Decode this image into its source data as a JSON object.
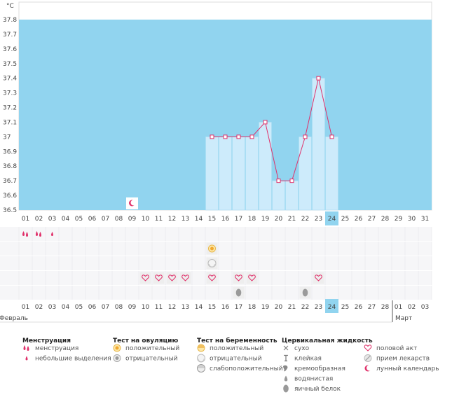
{
  "chart_data": {
    "type": "line",
    "title": "",
    "ylabel": "°C",
    "ylim": [
      36.5,
      37.8
    ],
    "y_ticks": [
      "37.8",
      "37.7",
      "37.6",
      "37.5",
      "37.4",
      "37.3",
      "37.2",
      "37.1",
      "37",
      "36.9",
      "36.8",
      "36.7",
      "36.6",
      "36.5"
    ],
    "days": [
      "01",
      "02",
      "03",
      "04",
      "05",
      "06",
      "07",
      "08",
      "09",
      "10",
      "11",
      "12",
      "13",
      "14",
      "15",
      "16",
      "17",
      "18",
      "19",
      "20",
      "21",
      "22",
      "23",
      "24",
      "25",
      "26",
      "27",
      "28",
      "29",
      "30",
      "31"
    ],
    "current_day": "24",
    "series": [
      {
        "name": "temperature",
        "points": [
          {
            "day": "15",
            "value": 37.0
          },
          {
            "day": "16",
            "value": 37.0
          },
          {
            "day": "17",
            "value": 37.0
          },
          {
            "day": "18",
            "value": 37.0
          },
          {
            "day": "19",
            "value": 37.1
          },
          {
            "day": "20",
            "value": 36.7
          },
          {
            "day": "21",
            "value": 36.7
          },
          {
            "day": "22",
            "value": 37.0
          },
          {
            "day": "23",
            "value": 37.4
          },
          {
            "day": "24",
            "value": 37.0
          }
        ]
      }
    ],
    "markers": [
      {
        "row": "menstruation",
        "day": "01",
        "icon": "menstruation-icon"
      },
      {
        "row": "menstruation",
        "day": "02",
        "icon": "menstruation-icon"
      },
      {
        "row": "menstruation",
        "day": "03",
        "icon": "light-spotting-icon"
      },
      {
        "row": "ovulation",
        "day": "15",
        "icon": "ovulation-positive-icon"
      },
      {
        "row": "pregnancy",
        "day": "15",
        "icon": "pregnancy-negative-icon"
      },
      {
        "row": "intercourse",
        "day": "10",
        "icon": "heart-icon"
      },
      {
        "row": "intercourse",
        "day": "11",
        "icon": "heart-icon"
      },
      {
        "row": "intercourse",
        "day": "12",
        "icon": "heart-icon"
      },
      {
        "row": "intercourse",
        "day": "13",
        "icon": "heart-icon"
      },
      {
        "row": "intercourse",
        "day": "15",
        "icon": "heart-icon"
      },
      {
        "row": "intercourse",
        "day": "17",
        "icon": "heart-icon"
      },
      {
        "row": "intercourse",
        "day": "18",
        "icon": "heart-icon"
      },
      {
        "row": "intercourse",
        "day": "23",
        "icon": "heart-icon"
      },
      {
        "row": "cervical",
        "day": "17",
        "icon": "egg-white-icon"
      },
      {
        "row": "cervical",
        "day": "22",
        "icon": "egg-white-icon"
      },
      {
        "row": "lunar",
        "day": "09",
        "icon": "lunar-icon"
      }
    ],
    "date_labels": [
      {
        "text": "01",
        "red": true
      },
      {
        "text": "02",
        "red": true
      },
      {
        "text": "03",
        "red": false
      },
      {
        "text": "04",
        "red": false
      },
      {
        "text": "05",
        "red": false
      },
      {
        "text": "06",
        "red": false
      },
      {
        "text": "07",
        "red": false
      },
      {
        "text": "08",
        "red": true
      },
      {
        "text": "09",
        "red": true
      },
      {
        "text": "10",
        "red": false
      },
      {
        "text": "11",
        "red": false
      },
      {
        "text": "12",
        "red": false
      },
      {
        "text": "13",
        "red": false
      },
      {
        "text": "14",
        "red": false
      },
      {
        "text": "15",
        "red": true
      },
      {
        "text": "16",
        "red": true
      },
      {
        "text": "17",
        "red": false
      },
      {
        "text": "18",
        "red": false
      },
      {
        "text": "19",
        "red": false
      },
      {
        "text": "20",
        "red": false
      },
      {
        "text": "21",
        "red": false
      },
      {
        "text": "22",
        "red": true
      },
      {
        "text": "23",
        "red": true
      },
      {
        "text": "24",
        "red": false
      },
      {
        "text": "25",
        "red": false
      },
      {
        "text": "26",
        "red": false
      },
      {
        "text": "27",
        "red": false
      },
      {
        "text": "28",
        "red": false
      },
      {
        "text": "01",
        "red": true
      },
      {
        "text": "02",
        "red": true
      },
      {
        "text": "03",
        "red": false
      }
    ],
    "month_labels": [
      "Февраль",
      "Март"
    ],
    "month_split_after": 28
  },
  "legend": {
    "groups": [
      {
        "title": "Менструация",
        "items": [
          {
            "label": "менструация",
            "icon": "menstruation-icon"
          },
          {
            "label": "небольшие выделения",
            "icon": "light-spotting-icon"
          }
        ]
      },
      {
        "title": "Тест на овуляцию",
        "items": [
          {
            "label": "положительный",
            "icon": "ovulation-positive-icon"
          },
          {
            "label": "отрицательный",
            "icon": "ovulation-negative-icon"
          }
        ]
      },
      {
        "title": "Тест на беременность",
        "items": [
          {
            "label": "положительный",
            "icon": "pregnancy-positive-icon"
          },
          {
            "label": "отрицательный",
            "icon": "pregnancy-negative-icon"
          },
          {
            "label": "слабоположительный",
            "icon": "pregnancy-weak-icon"
          }
        ]
      },
      {
        "title": "Цервикальная жидкость",
        "items": [
          {
            "label": "сухо",
            "icon": "dry-icon"
          },
          {
            "label": "клейкая",
            "icon": "sticky-icon"
          },
          {
            "label": "кремообразная",
            "icon": "creamy-icon"
          },
          {
            "label": "водянистая",
            "icon": "watery-icon"
          },
          {
            "label": "яичный белок",
            "icon": "egg-white-icon"
          }
        ]
      },
      {
        "title": "",
        "items": [
          {
            "label": "половой акт",
            "icon": "heart-icon"
          },
          {
            "label": "прием лекарств",
            "icon": "medicine-icon"
          },
          {
            "label": "лунный календарь",
            "icon": "lunar-icon"
          }
        ]
      }
    ]
  },
  "colors": {
    "plot_bg": "#91d4ef",
    "bar": "#cdebfb",
    "bar_edge": "#a8dcf4",
    "line": "#e0306a",
    "accent_red": "#e0306a",
    "current_day_bg": "#91d4ef",
    "row_bg": "#f6f6f8",
    "grid": "#e6e6ea",
    "egg_white": "#9a9a9a"
  }
}
